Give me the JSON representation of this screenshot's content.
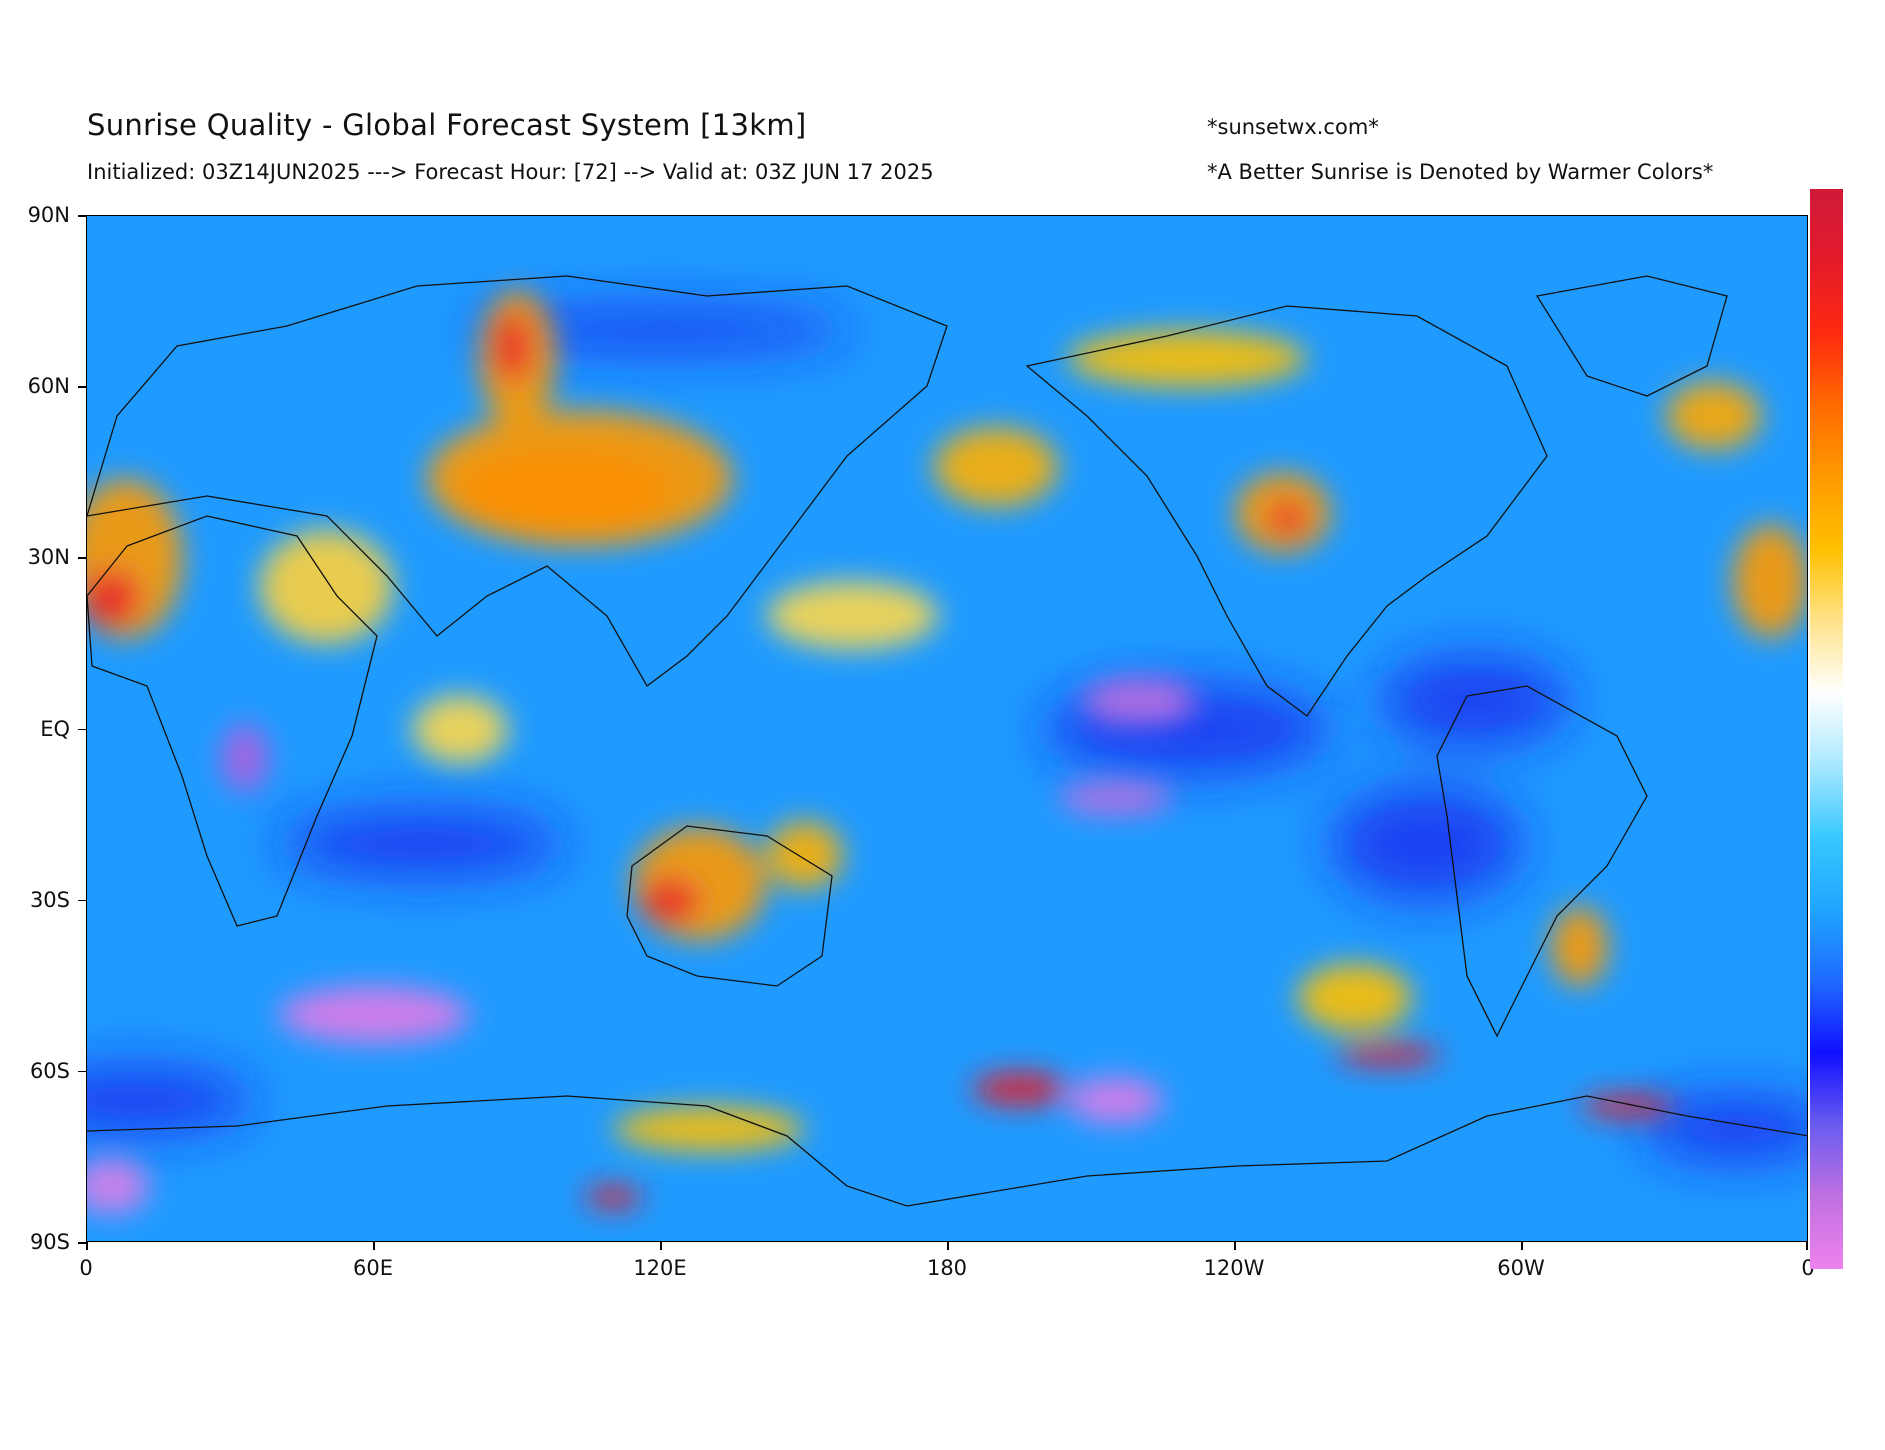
{
  "header": {
    "title": "Sunrise Quality - Global Forecast System [13km]",
    "subtitle": "Initialized: 03Z14JUN2025 ---> Forecast Hour: [72] --> Valid at: 03Z JUN 17 2025",
    "site": "*sunsetwx.com*",
    "note": "*A Better Sunrise is Denoted by Warmer Colors*"
  },
  "map": {
    "projection": "equirectangular",
    "lon_range": [
      0,
      360
    ],
    "lat_range": [
      -90,
      90
    ],
    "background_color": "#1f9bff",
    "y_ticks": [
      {
        "label": "90N",
        "lat": 90
      },
      {
        "label": "60N",
        "lat": 60
      },
      {
        "label": "30N",
        "lat": 30
      },
      {
        "label": "EQ",
        "lat": 0
      },
      {
        "label": "30S",
        "lat": -30
      },
      {
        "label": "60S",
        "lat": -60
      },
      {
        "label": "90S",
        "lat": -90
      }
    ],
    "x_ticks": [
      {
        "label": "0",
        "lon": 0
      },
      {
        "label": "60E",
        "lon": 60
      },
      {
        "label": "120E",
        "lon": 120
      },
      {
        "label": "180",
        "lon": 180
      },
      {
        "label": "120W",
        "lon": 240
      },
      {
        "label": "60W",
        "lon": 300
      },
      {
        "label": "0",
        "lon": 360
      }
    ],
    "field_blobs": [
      {
        "name": "central-asia-high",
        "lon": 100,
        "lat": 42,
        "rx": 22,
        "ry": 7,
        "color": "#e8202a"
      },
      {
        "name": "central-asia-orange",
        "lon": 103,
        "lat": 44,
        "rx": 32,
        "ry": 12,
        "color": "#ff9a00"
      },
      {
        "name": "siberia-orange",
        "lon": 90,
        "lat": 65,
        "rx": 8,
        "ry": 12,
        "color": "#ff9a00"
      },
      {
        "name": "siberia-red",
        "lon": 89,
        "lat": 67,
        "rx": 4,
        "ry": 6,
        "color": "#e8202a"
      },
      {
        "name": "sahara-orange",
        "lon": 8,
        "lat": 30,
        "rx": 12,
        "ry": 14,
        "color": "#ff9a00"
      },
      {
        "name": "sahara-red",
        "lon": 5,
        "lat": 23,
        "rx": 6,
        "ry": 5,
        "color": "#e8202a"
      },
      {
        "name": "arabia-yellow",
        "lon": 50,
        "lat": 25,
        "rx": 14,
        "ry": 10,
        "color": "#ffd23a"
      },
      {
        "name": "north-pacific-orange",
        "lon": 190,
        "lat": 46,
        "rx": 13,
        "ry": 7,
        "color": "#ffb000"
      },
      {
        "name": "west-us-orange",
        "lon": 250,
        "lat": 38,
        "rx": 10,
        "ry": 7,
        "color": "#ff9a00"
      },
      {
        "name": "west-us-red",
        "lon": 251,
        "lat": 37,
        "rx": 4,
        "ry": 3,
        "color": "#e8202a"
      },
      {
        "name": "australia-orange",
        "lon": 128,
        "lat": -27,
        "rx": 14,
        "ry": 10,
        "color": "#ff9a00"
      },
      {
        "name": "australia-red",
        "lon": 122,
        "lat": -30,
        "rx": 6,
        "ry": 4,
        "color": "#e8202a"
      },
      {
        "name": "east-australia-orange",
        "lon": 150,
        "lat": -22,
        "rx": 8,
        "ry": 6,
        "color": "#ffb000"
      },
      {
        "name": "west-africa-coast-orange",
        "lon": 352,
        "lat": 26,
        "rx": 8,
        "ry": 10,
        "color": "#ff9a00"
      },
      {
        "name": "south-atlantic-orange",
        "lon": 312,
        "lat": -38,
        "rx": 6,
        "ry": 7,
        "color": "#ff9a00"
      },
      {
        "name": "southern-ocean-red-1",
        "lon": 195,
        "lat": -63,
        "rx": 10,
        "ry": 3,
        "color": "#e8202a"
      },
      {
        "name": "southern-ocean-red-2",
        "lon": 272,
        "lat": -57,
        "rx": 11,
        "ry": 2,
        "color": "#e8202a"
      },
      {
        "name": "southern-ocean-red-3",
        "lon": 322,
        "lat": -66,
        "rx": 10,
        "ry": 2,
        "color": "#e8202a"
      },
      {
        "name": "antarctic-red",
        "lon": 110,
        "lat": -82,
        "rx": 6,
        "ry": 2,
        "color": "#e8202a"
      },
      {
        "name": "southern-ocean-yellow-1",
        "lon": 130,
        "lat": -70,
        "rx": 20,
        "ry": 4,
        "color": "#ffc000"
      },
      {
        "name": "southern-ocean-yellow-2",
        "lon": 265,
        "lat": -47,
        "rx": 12,
        "ry": 6,
        "color": "#ffc000"
      },
      {
        "name": "tropical-pacific-yellow",
        "lon": 160,
        "lat": 20,
        "rx": 18,
        "ry": 6,
        "color": "#ffd84a"
      },
      {
        "name": "indian-ocean-yellow",
        "lon": 78,
        "lat": 0,
        "rx": 10,
        "ry": 6,
        "color": "#ffd84a"
      },
      {
        "name": "arctic-yellow",
        "lon": 230,
        "lat": 65,
        "rx": 25,
        "ry": 5,
        "color": "#ffc000"
      },
      {
        "name": "greenland-sea-orange",
        "lon": 340,
        "lat": 55,
        "rx": 10,
        "ry": 6,
        "color": "#ffa800"
      },
      {
        "name": "southern-indian-violet",
        "lon": 60,
        "lat": -50,
        "rx": 20,
        "ry": 5,
        "color": "#e07ae8"
      },
      {
        "name": "ross-sea-violet",
        "lon": 215,
        "lat": -65,
        "rx": 10,
        "ry": 4,
        "color": "#e07ae8"
      },
      {
        "name": "tropical-east-pacific-violet",
        "lon": 220,
        "lat": 5,
        "rx": 12,
        "ry": 4,
        "color": "#c070e0"
      },
      {
        "name": "south-pacific-violet",
        "lon": 215,
        "lat": -12,
        "rx": 12,
        "ry": 3,
        "color": "#c070e0"
      },
      {
        "name": "antarctic-violet",
        "lon": 5,
        "lat": -80,
        "rx": 8,
        "ry": 5,
        "color": "#d880e8"
      },
      {
        "name": "east-africa-violet",
        "lon": 33,
        "lat": -5,
        "rx": 5,
        "ry": 6,
        "color": "#b060e0"
      }
    ],
    "dark_blue_bands": [
      {
        "lon": 230,
        "lat": 0,
        "rx": 30,
        "ry": 8
      },
      {
        "lon": 290,
        "lat": 5,
        "rx": 20,
        "ry": 8
      },
      {
        "lon": 120,
        "lat": 70,
        "rx": 40,
        "ry": 4
      },
      {
        "lon": 280,
        "lat": -20,
        "rx": 20,
        "ry": 10
      },
      {
        "lon": 70,
        "lat": -20,
        "rx": 30,
        "ry": 6
      },
      {
        "lon": 10,
        "lat": -65,
        "rx": 25,
        "ry": 6
      },
      {
        "lon": 345,
        "lat": -70,
        "rx": 20,
        "ry": 6
      }
    ]
  },
  "colorbar": {
    "colors": [
      "#ee82ee",
      "#c070e0",
      "#6a5cf0",
      "#1010ff",
      "#1f6bff",
      "#1fa6ff",
      "#38c8ff",
      "#a9e8ff",
      "#ffffff",
      "#ffe38a",
      "#ffc000",
      "#ff9a00",
      "#ff6a00",
      "#ff2a10",
      "#e31a2a",
      "#d01a3a"
    ]
  }
}
